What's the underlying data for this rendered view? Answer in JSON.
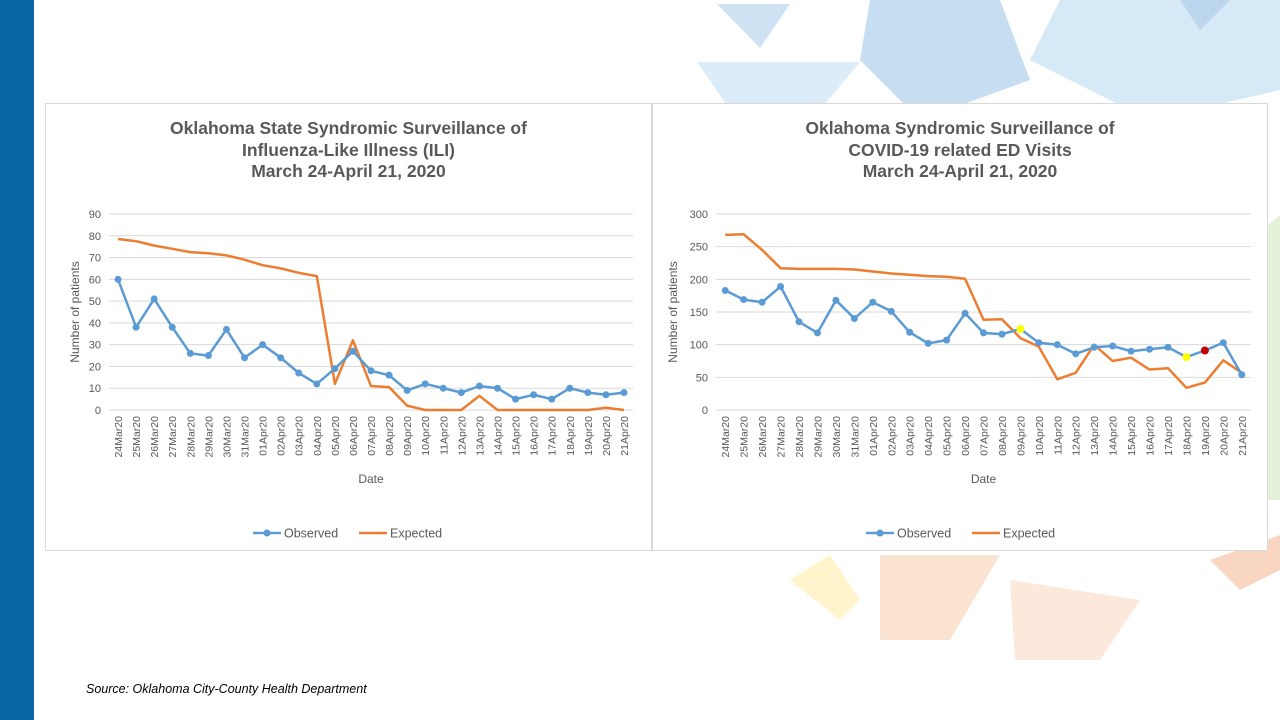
{
  "source": "Source: Oklahoma City-County Health Department",
  "colors": {
    "observed": "#5b9bd5",
    "expected": "#ed7d31",
    "sidebar": "#0a66a6"
  },
  "chart_data": [
    {
      "type": "line",
      "title_lines": [
        "Oklahoma State Syndromic Surveillance of",
        "Influenza-Like Illness (ILI)",
        "March 24-April 21, 2020"
      ],
      "xlabel": "Date",
      "ylabel": "Number of patients",
      "ylim": [
        0,
        90
      ],
      "yticks": [
        0,
        10,
        20,
        30,
        40,
        50,
        60,
        70,
        80,
        90
      ],
      "grid": true,
      "legend": "bottom",
      "categories": [
        "24Mar20",
        "25Mar20",
        "26Mar20",
        "27Mar20",
        "28Mar20",
        "29Mar20",
        "30Mar20",
        "31Mar20",
        "01Apr20",
        "02Apr20",
        "03Apr20",
        "04Apr20",
        "05Apr20",
        "06Apr20",
        "07Apr20",
        "08Apr20",
        "09Apr20",
        "10Apr20",
        "11Apr20",
        "12Apr20",
        "13Apr20",
        "14Apr20",
        "15Apr20",
        "16Apr20",
        "17Apr20",
        "18Apr20",
        "19Apr20",
        "20Apr20",
        "21Apr20"
      ],
      "series": [
        {
          "name": "Observed",
          "style": "line-marker",
          "color": "#5b9bd5",
          "values": [
            60,
            38,
            51,
            38,
            26,
            25,
            37,
            24,
            30,
            24,
            17,
            12,
            19,
            27,
            18,
            16,
            9,
            12,
            10,
            8,
            11,
            10,
            5,
            7,
            5,
            10,
            8,
            7,
            8
          ]
        },
        {
          "name": "Expected",
          "style": "line",
          "color": "#ed7d31",
          "values": [
            78.5,
            77.5,
            75.5,
            74,
            72.5,
            72,
            71,
            69,
            66.5,
            65,
            63,
            61.5,
            12,
            32,
            11,
            10.5,
            2,
            0,
            0,
            0,
            6.5,
            0,
            0,
            0,
            0,
            0,
            0,
            1,
            0
          ]
        }
      ],
      "highlights": []
    },
    {
      "type": "line",
      "title_lines": [
        "Oklahoma Syndromic Surveillance of",
        "COVID-19 related ED Visits",
        "March 24-April 21, 2020"
      ],
      "xlabel": "Date",
      "ylabel": "Number of patients",
      "ylim": [
        0,
        300
      ],
      "yticks": [
        0,
        50,
        100,
        150,
        200,
        250,
        300
      ],
      "grid": true,
      "legend": "bottom",
      "categories": [
        "24Mar20",
        "25Mar20",
        "26Mar20",
        "27Mar20",
        "28Mar20",
        "29Mar20",
        "30Mar20",
        "31Mar20",
        "01Apr20",
        "02Apr20",
        "03Apr20",
        "04Apr20",
        "05Apr20",
        "06Apr20",
        "07Apr20",
        "08Apr20",
        "09Apr20",
        "10Apr20",
        "11Apr20",
        "12Apr20",
        "13Apr20",
        "14Apr20",
        "15Apr20",
        "16Apr20",
        "17Apr20",
        "18Apr20",
        "19Apr20",
        "20Apr20",
        "21Apr20"
      ],
      "series": [
        {
          "name": "Observed",
          "style": "line-marker",
          "color": "#5b9bd5",
          "values": [
            183,
            169,
            165,
            189,
            135,
            118,
            168,
            140,
            165,
            151,
            119,
            102,
            107,
            148,
            118,
            116,
            124,
            103,
            100,
            86,
            96,
            98,
            90,
            93,
            96,
            81,
            91,
            103,
            54
          ]
        },
        {
          "name": "Expected",
          "style": "line",
          "color": "#ed7d31",
          "values": [
            268,
            269,
            245,
            217,
            216,
            216,
            216,
            215,
            212,
            209,
            207,
            205,
            204,
            201,
            138,
            139,
            110,
            97,
            47,
            57,
            100,
            75,
            80,
            62,
            64,
            34,
            42,
            76,
            57
          ]
        }
      ],
      "highlights": [
        {
          "category": "09Apr20",
          "series": "Observed",
          "color": "#ffff00"
        },
        {
          "category": "18Apr20",
          "series": "Observed",
          "color": "#ffff00"
        },
        {
          "category": "19Apr20",
          "series": "Observed",
          "color": "#c00000"
        }
      ]
    }
  ]
}
